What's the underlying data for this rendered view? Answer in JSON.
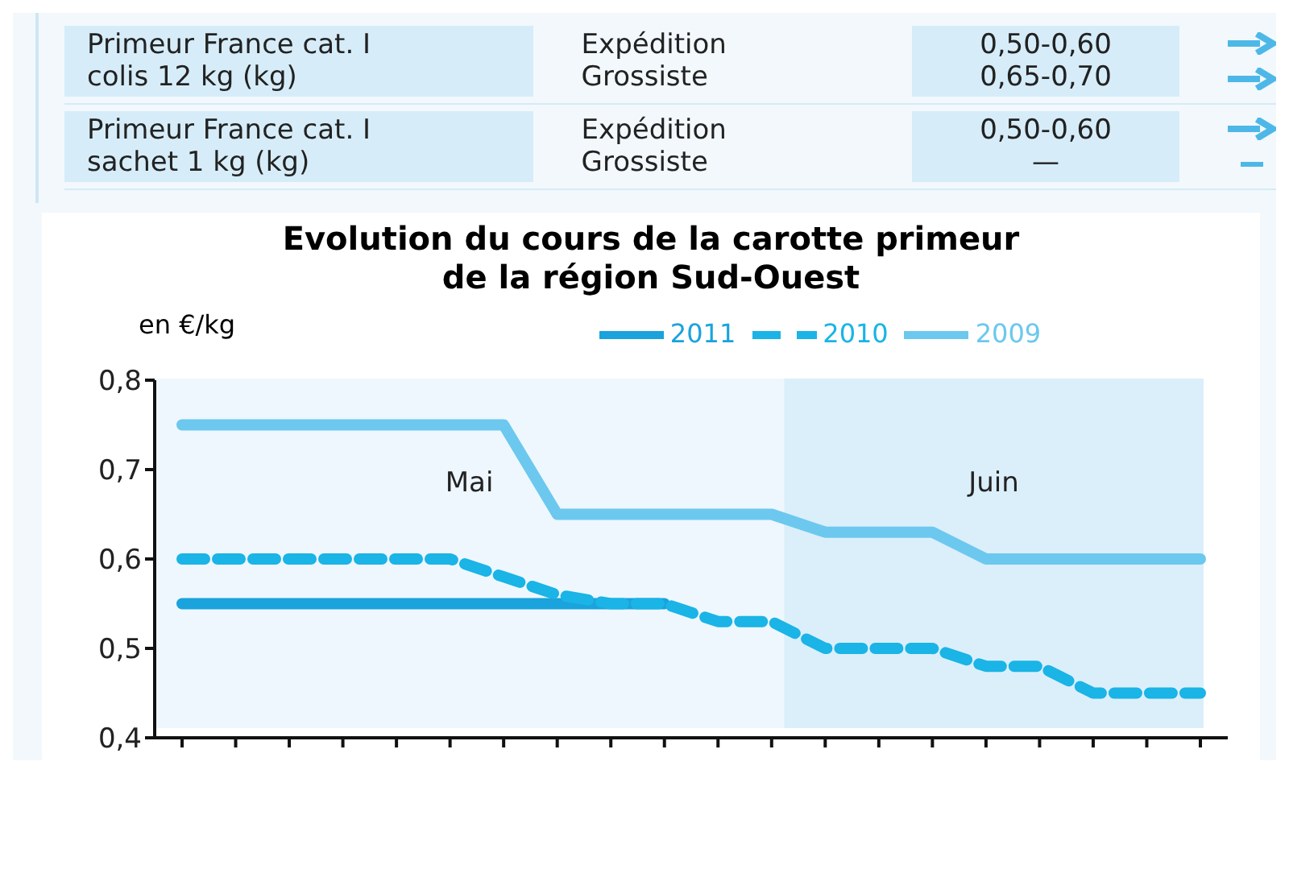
{
  "chart_data": {
    "type": "line",
    "title": "Evolution du cours de la carotte primeur\nde la région Sud-Ouest",
    "ylabel": "en €/kg",
    "annotations": [
      "Primeur France cat. I\ncolis 12 kg (kg)",
      "Expédition\nGrossiste",
      "0,50-0,60\n0,65-0,70",
      "Primeur France cat. I\nsachet 1 kg (kg)",
      "Expédition\nGrossiste",
      "0,50-0,60\n—",
      "Mai",
      "Juin"
    ],
    "categories": [
      null,
      null,
      null,
      null,
      null,
      null,
      null,
      null,
      null,
      null,
      null,
      null,
      null,
      null,
      null,
      null,
      null,
      null,
      null,
      null
    ],
    "series": [
      {
        "name": "2011",
        "color": "#1aa3dc",
        "line_style": "solid",
        "values": [
          0.55,
          0.55,
          0.55,
          0.55,
          0.55,
          0.55,
          0.55,
          0.55,
          0.55,
          0.55,
          null,
          null,
          null,
          null,
          null,
          null,
          null,
          null,
          null,
          null
        ]
      },
      {
        "name": "2010",
        "color": "#1ab4e6",
        "line_style": "dashed",
        "values": [
          0.6,
          0.6,
          0.6,
          0.6,
          0.6,
          0.6,
          0.58,
          0.56,
          0.55,
          0.55,
          0.53,
          0.53,
          0.5,
          0.5,
          0.5,
          0.48,
          0.48,
          0.45,
          0.45,
          0.45
        ]
      },
      {
        "name": "2009",
        "color": "#6cc8ee",
        "line_style": "solid",
        "values": [
          0.75,
          0.75,
          0.75,
          0.75,
          0.75,
          0.75,
          0.75,
          0.65,
          0.65,
          0.65,
          0.65,
          0.65,
          0.63,
          0.63,
          0.63,
          0.6,
          0.6,
          0.6,
          0.6,
          0.6
        ]
      }
    ],
    "ylim": [
      0.4,
      0.8
    ],
    "yticks": [
      {
        "value": 0.4,
        "label": "0,4"
      },
      {
        "value": 0.5,
        "label": "0,5"
      },
      {
        "value": 0.6,
        "label": "0,6"
      },
      {
        "value": 0.7,
        "label": "0,7"
      },
      {
        "value": 0.8,
        "label": "0,8"
      }
    ],
    "legend": "top"
  }
}
